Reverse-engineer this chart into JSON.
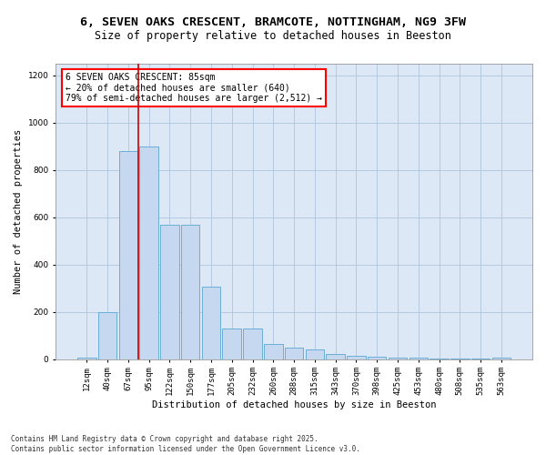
{
  "title": "6, SEVEN OAKS CRESCENT, BRAMCOTE, NOTTINGHAM, NG9 3FW",
  "subtitle": "Size of property relative to detached houses in Beeston",
  "xlabel": "Distribution of detached houses by size in Beeston",
  "ylabel": "Number of detached properties",
  "categories": [
    "12sqm",
    "40sqm",
    "67sqm",
    "95sqm",
    "122sqm",
    "150sqm",
    "177sqm",
    "205sqm",
    "232sqm",
    "260sqm",
    "288sqm",
    "315sqm",
    "343sqm",
    "370sqm",
    "398sqm",
    "425sqm",
    "453sqm",
    "480sqm",
    "508sqm",
    "535sqm",
    "563sqm"
  ],
  "bar_values": [
    5,
    200,
    880,
    900,
    570,
    570,
    305,
    130,
    130,
    65,
    50,
    40,
    20,
    15,
    10,
    5,
    5,
    2,
    2,
    1,
    5
  ],
  "bar_color": "#c5d8ef",
  "bar_edge_color": "#6baed6",
  "grid_color": "#b0c4de",
  "background_color": "#dce8f5",
  "vline_color": "#cc0000",
  "annotation_text": "6 SEVEN OAKS CRESCENT: 85sqm\n← 20% of detached houses are smaller (640)\n79% of semi-detached houses are larger (2,512) →",
  "footer_text": "Contains HM Land Registry data © Crown copyright and database right 2025.\nContains public sector information licensed under the Open Government Licence v3.0.",
  "ylim": [
    0,
    1250
  ],
  "yticks": [
    0,
    200,
    400,
    600,
    800,
    1000,
    1200
  ],
  "title_fontsize": 9.5,
  "subtitle_fontsize": 8.5,
  "axis_label_fontsize": 7.5,
  "tick_fontsize": 6.5,
  "annot_fontsize": 7,
  "footer_fontsize": 5.5
}
